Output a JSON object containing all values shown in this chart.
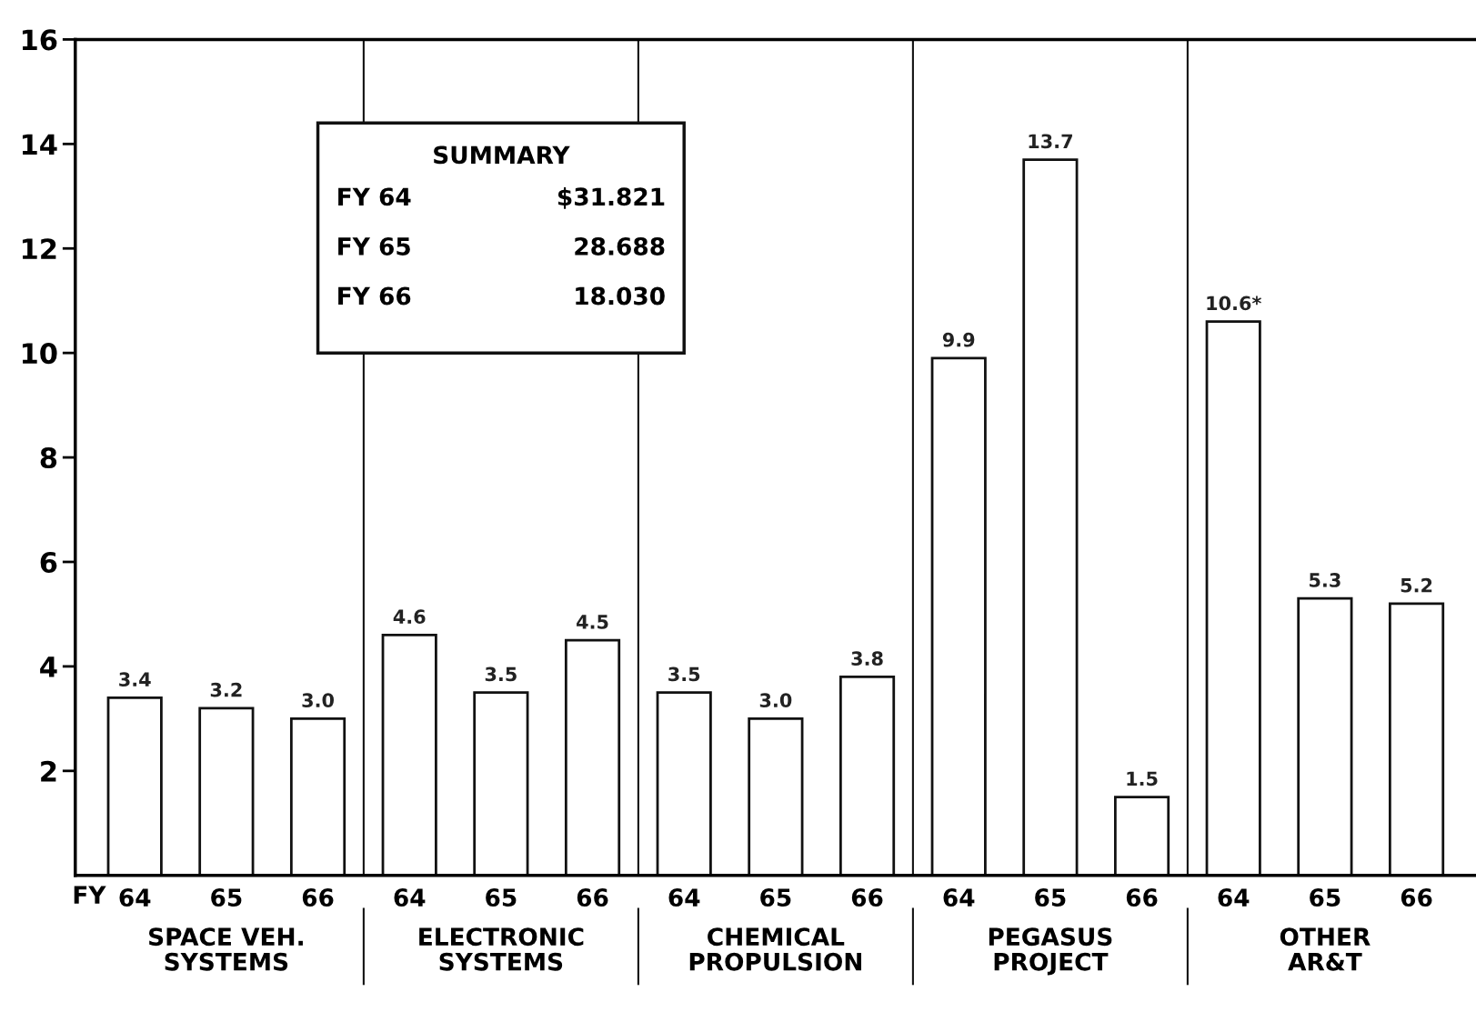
{
  "chart_data": {
    "type": "bar",
    "categories": [
      "64",
      "65",
      "66",
      "64",
      "65",
      "66",
      "64",
      "65",
      "66",
      "64",
      "65",
      "66",
      "64",
      "65",
      "66"
    ],
    "values": [
      3.4,
      3.2,
      3.0,
      4.6,
      3.5,
      4.5,
      3.5,
      3.0,
      3.8,
      9.9,
      13.7,
      1.5,
      10.6,
      5.3,
      5.2
    ],
    "value_labels": [
      "3.4",
      "3.2",
      "3.0",
      "4.6",
      "3.5",
      "4.5",
      "3.5",
      "3.0",
      "3.8",
      "9.9",
      "13.7",
      "1.5",
      "10.6*",
      "5.3",
      "5.2"
    ],
    "color": "#ffffff",
    "ylim": [
      0,
      16
    ],
    "yticks": [
      2,
      4,
      6,
      8,
      10,
      12,
      14,
      16
    ],
    "grid": false,
    "legend": false,
    "annotations": [
      "FY",
      "SPACE VEH.\nSYSTEMS",
      "ELECTRONIC\nSYSTEMS",
      "CHEMICAL\nPROPULSION",
      "PEGASUS\nPROJECT",
      "OTHER\nAR&T",
      "SUMMARY",
      "FY 64",
      "$31.821",
      "FY 65",
      "28.688",
      "FY 66",
      "18.030"
    ]
  }
}
